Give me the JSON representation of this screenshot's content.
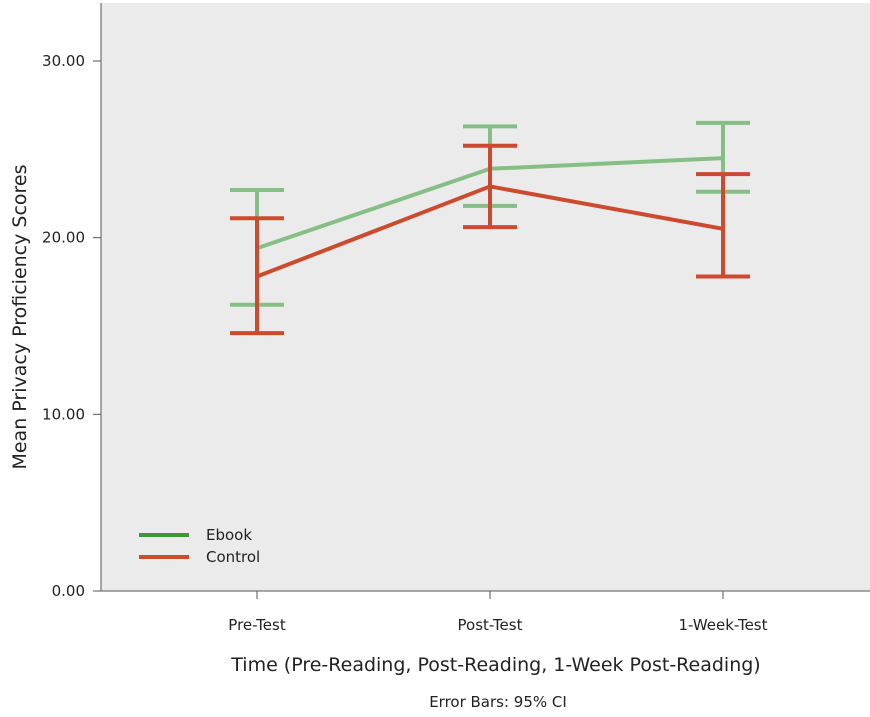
{
  "chart_data": {
    "type": "line",
    "xlabel": "Time (Pre-Reading, Post-Reading, 1-Week Post-Reading)",
    "ylabel": "Mean Privacy Proficiency Scores",
    "note": "Error Bars: 95% CI",
    "categories": [
      "Pre-Test",
      "Post-Test",
      "1-Week-Test"
    ],
    "ylim": [
      0,
      30
    ],
    "yticks": [
      0,
      10,
      20,
      30
    ],
    "ytick_labels": [
      "0.00",
      "10.00",
      "20.00",
      "30.00"
    ],
    "grid": false,
    "legend_position": "bottom-left",
    "background_color": "#ebebeb",
    "series": [
      {
        "name": "Ebook",
        "color": "#86bf86",
        "legend_color": "#3a9a3a",
        "values": [
          19.4,
          23.9,
          24.5
        ],
        "ci_low": [
          16.2,
          21.8,
          22.6
        ],
        "ci_high": [
          22.7,
          26.3,
          26.5
        ]
      },
      {
        "name": "Control",
        "color": "#cc4a2e",
        "legend_color": "#cc4a2e",
        "values": [
          17.8,
          22.9,
          20.5
        ],
        "ci_low": [
          14.6,
          20.6,
          17.8
        ],
        "ci_high": [
          21.1,
          25.2,
          23.6
        ]
      }
    ]
  }
}
